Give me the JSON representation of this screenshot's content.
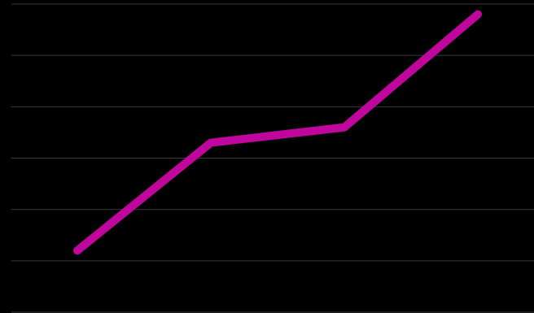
{
  "chart_data": {
    "type": "line",
    "x": [
      1,
      2,
      3,
      4
    ],
    "series": [
      {
        "values": [
          1.2,
          3.3,
          3.6,
          5.8
        ],
        "color": "#c0069c"
      }
    ],
    "ylim": [
      0,
      6
    ],
    "grid": true,
    "gridline_color": "#3a3a3a",
    "background_color": "#000000"
  }
}
